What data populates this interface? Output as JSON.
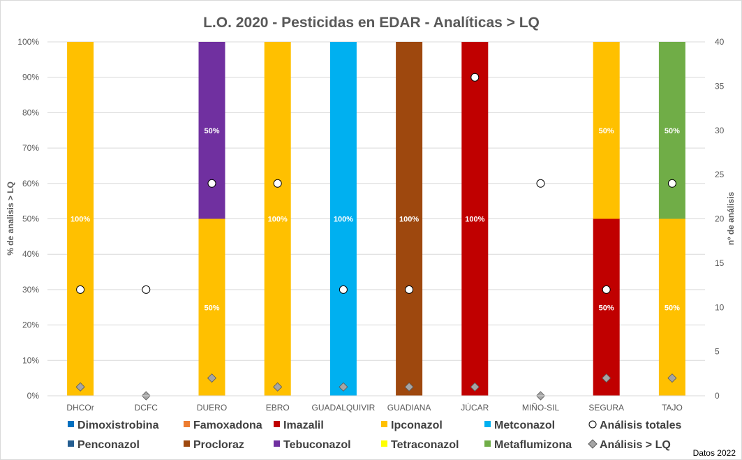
{
  "chart_data": {
    "type": "bar",
    "stacked": true,
    "title": "L.O. 2020 - Pesticidas en EDAR - Analíticas > LQ",
    "ylabel": "% de analisis > LQ",
    "y2label": "nº de análisis",
    "ylim": [
      0,
      100
    ],
    "y2lim": [
      0,
      40
    ],
    "yticks": [
      "0%",
      "10%",
      "20%",
      "30%",
      "40%",
      "50%",
      "60%",
      "70%",
      "80%",
      "90%",
      "100%"
    ],
    "y2ticks": [
      "0",
      "5",
      "10",
      "15",
      "20",
      "25",
      "30",
      "35",
      "40"
    ],
    "grid": true,
    "legend": "bottom",
    "categories": [
      "DHCOr",
      "DCFC",
      "DUERO",
      "EBRO",
      "GUADALQUIVIR",
      "GUADIANA",
      "JÚCAR",
      "MIÑO-SIL",
      "SEGURA",
      "TAJO"
    ],
    "series": [
      {
        "name": "Dimoxistrobina",
        "color": "#0070C0",
        "values": [
          0,
          0,
          0,
          0,
          0,
          0,
          0,
          0,
          0,
          0
        ]
      },
      {
        "name": "Famoxadona",
        "color": "#ED7D31",
        "values": [
          0,
          0,
          0,
          0,
          0,
          0,
          0,
          0,
          0,
          0
        ]
      },
      {
        "name": "Imazalil",
        "color": "#C00000",
        "values": [
          0,
          0,
          0,
          0,
          0,
          0,
          100,
          0,
          50,
          0
        ]
      },
      {
        "name": "Ipconazol",
        "color": "#FFC000",
        "values": [
          100,
          0,
          50,
          100,
          0,
          0,
          0,
          0,
          50,
          50
        ]
      },
      {
        "name": "Metconazol",
        "color": "#00B0F0",
        "values": [
          0,
          0,
          0,
          0,
          100,
          0,
          0,
          0,
          0,
          0
        ]
      },
      {
        "name": "Penconazol",
        "color": "#255E91",
        "values": [
          0,
          0,
          0,
          0,
          0,
          0,
          0,
          0,
          0,
          0
        ]
      },
      {
        "name": "Procloraz",
        "color": "#9E480E",
        "values": [
          0,
          0,
          0,
          0,
          0,
          100,
          0,
          0,
          0,
          0
        ]
      },
      {
        "name": "Tebuconazol",
        "color": "#7030A0",
        "values": [
          0,
          0,
          50,
          0,
          0,
          0,
          0,
          0,
          0,
          0
        ]
      },
      {
        "name": "Tetraconazol",
        "color": "#FFFF00",
        "values": [
          0,
          0,
          0,
          0,
          0,
          0,
          0,
          0,
          0,
          0
        ]
      },
      {
        "name": "Metaflumizona",
        "color": "#70AD47",
        "values": [
          0,
          0,
          0,
          0,
          0,
          0,
          0,
          0,
          0,
          50
        ]
      }
    ],
    "markers": [
      {
        "name": "Análisis totales",
        "shape": "circle",
        "axis": "right",
        "values": [
          12,
          12,
          24,
          24,
          12,
          12,
          36,
          24,
          12,
          24
        ]
      },
      {
        "name": "Análisis > LQ",
        "shape": "diamond",
        "axis": "right",
        "values": [
          1,
          0,
          2,
          1,
          1,
          1,
          1,
          0,
          2,
          2
        ]
      }
    ]
  },
  "note": "Datos 2022"
}
